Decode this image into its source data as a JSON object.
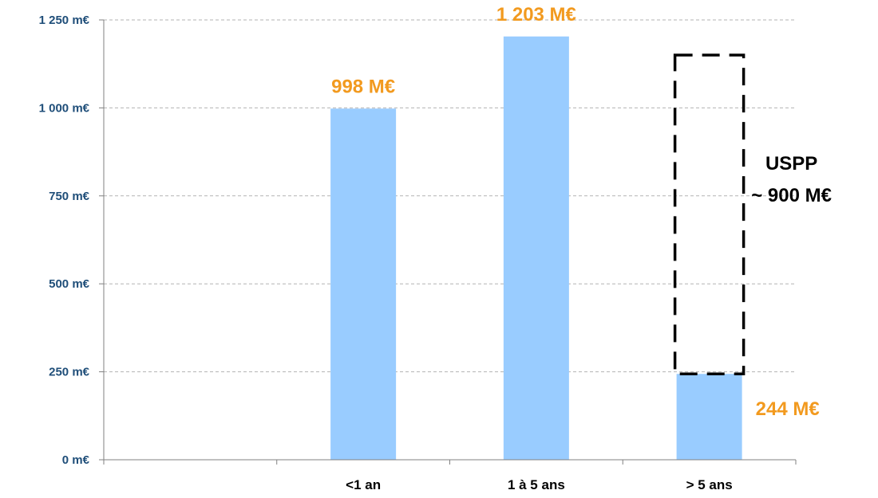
{
  "chart_data": {
    "type": "bar",
    "categories": [
      "",
      "<1 an",
      "1 à 5 ans",
      "> 5 ans"
    ],
    "values": [
      0,
      998,
      1203,
      244
    ],
    "data_labels": [
      "",
      "998 M€",
      "1 203 M€",
      "244 M€"
    ],
    "ylim": [
      0,
      1250
    ],
    "yticks": [
      0,
      250,
      500,
      750,
      1000,
      1250
    ],
    "ytick_labels": [
      "0 m€",
      "250 m€",
      "500 m€",
      "750 m€",
      "1 000 m€",
      "1 250 m€"
    ],
    "grid": true,
    "annotation": {
      "category": "> 5 ans",
      "from": 244,
      "to": 1150,
      "lines": [
        "USPP",
        "~ 900 M€"
      ]
    },
    "colors": {
      "bar": "#99ccff",
      "data_label": "#f29a1f",
      "tick_label": "#1f4e79",
      "axis": "#808080",
      "grid": "#b3b3b3",
      "annotation": "#000000"
    }
  }
}
